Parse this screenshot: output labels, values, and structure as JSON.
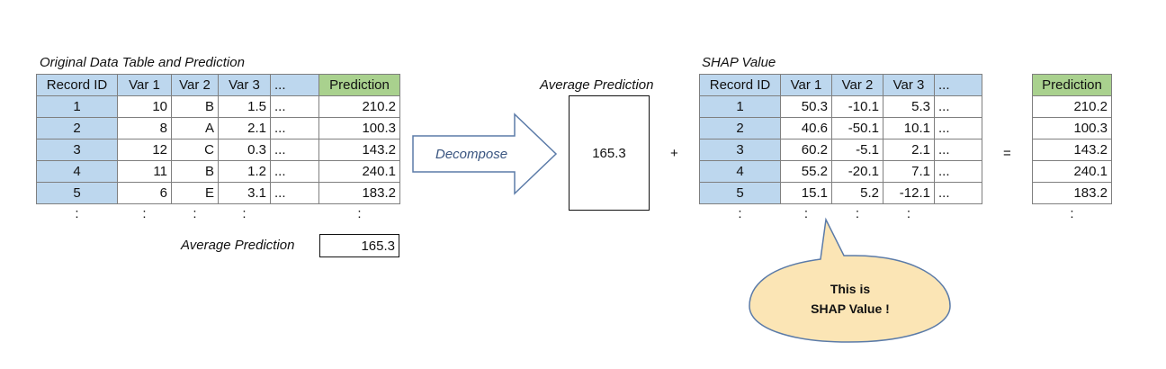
{
  "left": {
    "title": "Original Data Table and Prediction",
    "headers": [
      "Record ID",
      "Var 1",
      "Var 2",
      "Var 3",
      "...",
      "Prediction"
    ],
    "rows": [
      [
        "1",
        "10",
        "B",
        "1.5",
        "...",
        "210.2"
      ],
      [
        "2",
        "8",
        "A",
        "2.1",
        "...",
        "100.3"
      ],
      [
        "3",
        "12",
        "C",
        "0.3",
        "...",
        "143.2"
      ],
      [
        "4",
        "11",
        "B",
        "1.2",
        "...",
        "240.1"
      ],
      [
        "5",
        "6",
        "E",
        "3.1",
        "...",
        "183.2"
      ]
    ],
    "continuation": [
      ":",
      ":",
      ":",
      ":",
      "",
      ":"
    ],
    "avg_label": "Average Prediction",
    "avg_value": "165.3"
  },
  "arrow": {
    "label": "Decompose"
  },
  "middle": {
    "title": "Average Prediction",
    "value": "165.3",
    "plus": "+"
  },
  "shap": {
    "title": "SHAP Value",
    "headers": [
      "Record ID",
      "Var 1",
      "Var 2",
      "Var 3",
      "..."
    ],
    "rows": [
      [
        "1",
        "50.3",
        "-10.1",
        "5.3",
        "..."
      ],
      [
        "2",
        "40.6",
        "-50.1",
        "10.1",
        "..."
      ],
      [
        "3",
        "60.2",
        "-5.1",
        "2.1",
        "..."
      ],
      [
        "4",
        "55.2",
        "-20.1",
        "7.1",
        "..."
      ],
      [
        "5",
        "15.1",
        "5.2",
        "-12.1",
        "..."
      ]
    ],
    "continuation": [
      ":",
      ":",
      ":",
      ":",
      ""
    ]
  },
  "equals": "=",
  "right": {
    "header": "Prediction",
    "rows": [
      "210.2",
      "100.3",
      "143.2",
      "240.1",
      "183.2"
    ],
    "continuation": ":"
  },
  "callout": {
    "line1": "This is",
    "line2": "SHAP Value !"
  },
  "colors": {
    "header_blue": "#bdd7ee",
    "header_green": "#a9d18e",
    "bubble_fill": "#fbe5b5",
    "arrow_stroke": "#5b7ba8"
  }
}
